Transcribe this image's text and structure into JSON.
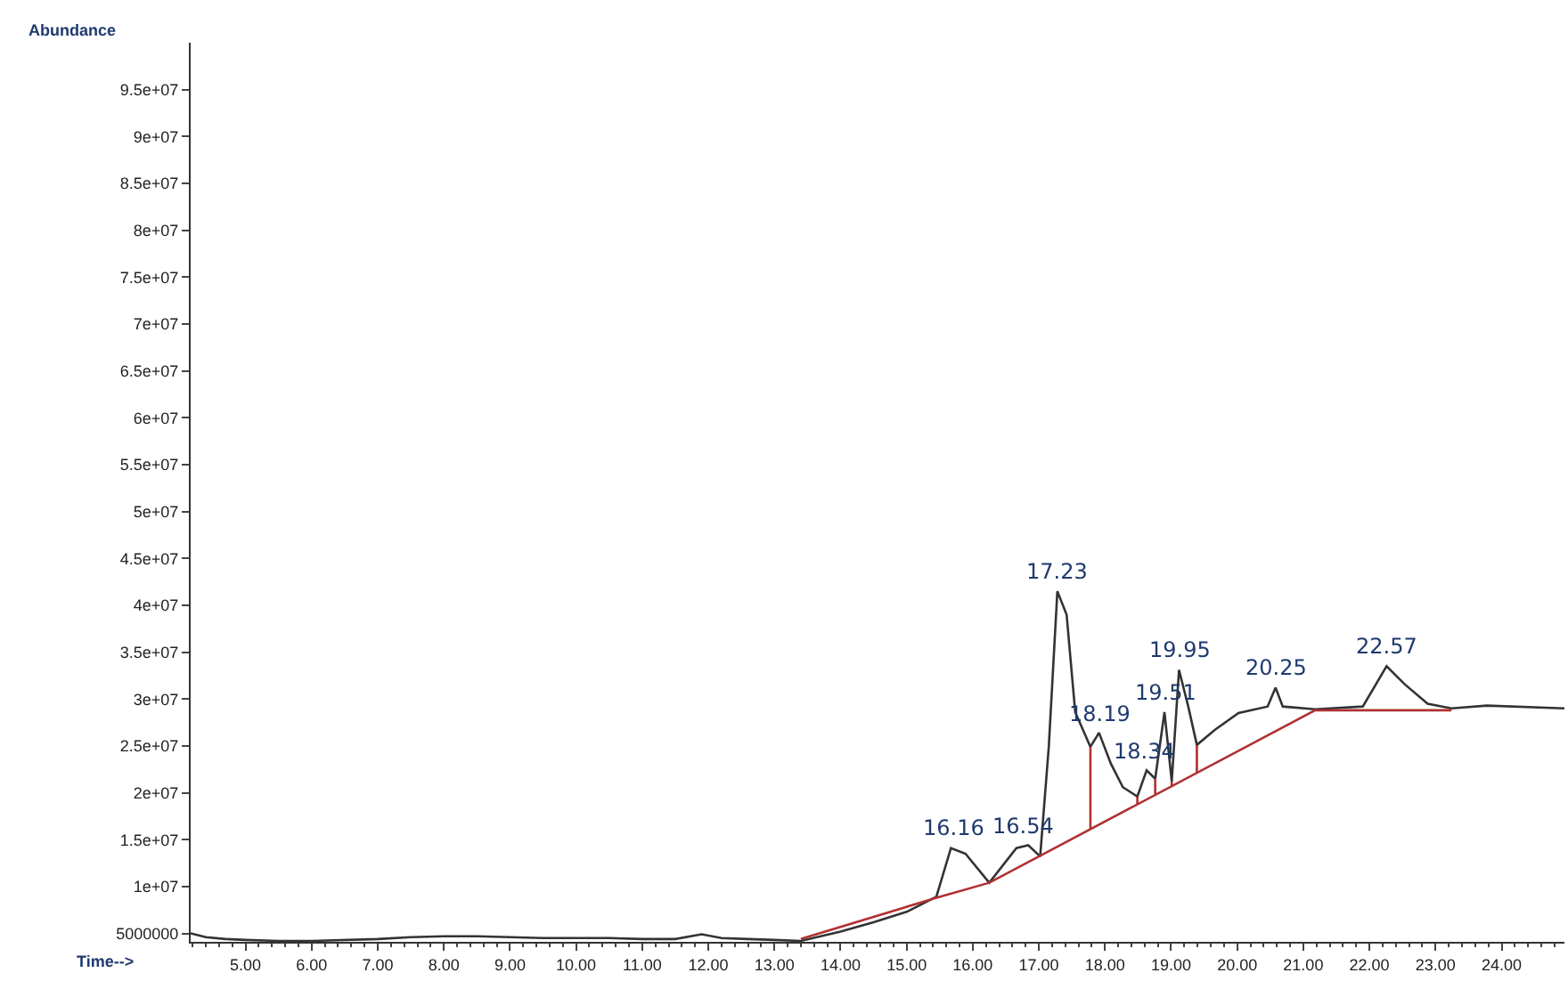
{
  "chart_data": {
    "type": "line",
    "xlabel": "Time-->",
    "ylabel": "Abundance",
    "xlim": [
      4.17,
      24.95
    ],
    "ylim": [
      4100000,
      100000000
    ],
    "xticks": [
      {
        "value": 5,
        "label": "5.00"
      },
      {
        "value": 6,
        "label": "6.00"
      },
      {
        "value": 7,
        "label": "7.00"
      },
      {
        "value": 8,
        "label": "8.00"
      },
      {
        "value": 9,
        "label": "9.00"
      },
      {
        "value": 10,
        "label": "10.00"
      },
      {
        "value": 11,
        "label": "11.00"
      },
      {
        "value": 12,
        "label": "12.00"
      },
      {
        "value": 13,
        "label": "13.00"
      },
      {
        "value": 14,
        "label": "14.00"
      },
      {
        "value": 15,
        "label": "15.00"
      },
      {
        "value": 16,
        "label": "16.00"
      },
      {
        "value": 17,
        "label": "17.00"
      },
      {
        "value": 18,
        "label": "18.00"
      },
      {
        "value": 19,
        "label": "19.00"
      },
      {
        "value": 20,
        "label": "20.00"
      },
      {
        "value": 21,
        "label": "21.00"
      },
      {
        "value": 22,
        "label": "22.00"
      },
      {
        "value": 23,
        "label": "23.00"
      },
      {
        "value": 24,
        "label": "24.00"
      }
    ],
    "yticks": [
      5000000,
      {
        "value": 10000000,
        "label": "1e+07"
      },
      {
        "value": 15000000,
        "label": "1.5e+07"
      },
      {
        "value": 20000000,
        "label": "2e+07"
      },
      {
        "value": 25000000,
        "label": "2.5e+07"
      },
      {
        "value": 30000000,
        "label": "3e+07"
      },
      {
        "value": 35000000,
        "label": "3.5e+07"
      },
      {
        "value": 40000000,
        "label": "4e+07"
      },
      {
        "value": 45000000,
        "label": "4.5e+07"
      },
      {
        "value": 50000000,
        "label": "5e+07"
      },
      {
        "value": 55000000,
        "label": "5.5e+07"
      },
      {
        "value": 60000000,
        "label": "6e+07"
      },
      {
        "value": 65000000,
        "label": "6.5e+07"
      },
      {
        "value": 70000000,
        "label": "7e+07"
      },
      {
        "value": 75000000,
        "label": "7.5e+07"
      },
      {
        "value": 80000000,
        "label": "8e+07"
      },
      {
        "value": 85000000,
        "label": "8.5e+07"
      },
      {
        "value": 90000000,
        "label": "9e+07"
      },
      {
        "value": 95000000,
        "label": "9.5e+07"
      }
    ],
    "marker": "none",
    "line_style": "solid",
    "series": [
      {
        "color": "#333333",
        "x": [
          4.17,
          4.4,
          4.7,
          5.0,
          5.5,
          6.0,
          7.0,
          7.5,
          8.0,
          8.5,
          9.0,
          9.5,
          10.0,
          10.5,
          11.0,
          11.5,
          11.9,
          12.2,
          12.6,
          13.0,
          13.4,
          14.0,
          14.5,
          15.0,
          15.45,
          15.67,
          15.89,
          16.25,
          16.66,
          16.84,
          17.02,
          17.15,
          17.28,
          17.42,
          17.55,
          17.78,
          17.91,
          18.09,
          18.27,
          18.49,
          18.63,
          18.76,
          18.9,
          19.01,
          19.12,
          19.26,
          19.39,
          19.66,
          20.02,
          20.46,
          20.58,
          20.69,
          21.18,
          21.9,
          22.26,
          22.53,
          22.88,
          23.24,
          23.78,
          24.95
        ],
        "values": [
          5000000,
          4600000,
          4400000,
          4300000,
          4200000,
          4200000,
          4400000,
          4600000,
          4700000,
          4700000,
          4600000,
          4500000,
          4500000,
          4500000,
          4400000,
          4400000,
          4900000,
          4500000,
          4400000,
          4300000,
          4200000,
          5200000,
          6200000,
          7300000,
          8900000,
          14100000,
          13500000,
          10400000,
          14100000,
          14400000,
          13200000,
          24900000,
          41500000,
          39000000,
          28600000,
          24900000,
          26400000,
          23100000,
          20600000,
          19600000,
          22400000,
          21500000,
          28600000,
          21200000,
          33100000,
          29200000,
          25100000,
          26700000,
          28500000,
          29200000,
          31200000,
          29200000,
          28900000,
          29200000,
          33500000,
          31600000,
          29500000,
          29000000,
          29300000,
          29000000
        ]
      },
      {
        "color": "#b03030",
        "x": [
          13.4,
          15.45,
          16.25,
          21.18,
          23.24,
          null,
          17.78,
          17.78,
          null,
          18.49,
          18.49,
          null,
          18.76,
          18.76,
          null,
          19.01,
          19.01,
          null,
          19.39,
          19.39
        ],
        "values": [
          4400000,
          8800000,
          10400000,
          28800000,
          28800000,
          null,
          16100000,
          24900000,
          null,
          18800000,
          19600000,
          null,
          19800000,
          21500000,
          null,
          20700000,
          21200000,
          null,
          22100000,
          25100000
        ]
      }
    ],
    "annotations": [
      {
        "text": "16.16",
        "x": 15.7,
        "y": 14100000
      },
      {
        "text": "16.54",
        "x": 16.75,
        "y": 14400000
      },
      {
        "text": "17.23",
        "x": 17.28,
        "y": 41500000
      },
      {
        "text": "18.19",
        "x": 17.91,
        "y": 26400000
      },
      {
        "text": "18.34",
        "x": 18.6,
        "y": 22400000
      },
      {
        "text": "19.51",
        "x": 18.9,
        "y": 28600000
      },
      {
        "text": "19.95",
        "x": 19.12,
        "y": 33100000
      },
      {
        "text": "20.25",
        "x": 20.58,
        "y": 31200000
      },
      {
        "text": "22.57",
        "x": 22.26,
        "y": 33500000
      }
    ]
  }
}
